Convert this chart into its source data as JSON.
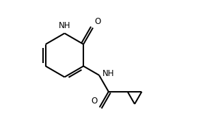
{
  "background": "#ffffff",
  "line_color": "#000000",
  "line_width": 1.5,
  "font_size": 8.5,
  "figsize": [
    3.0,
    2.0
  ],
  "dpi": 100,
  "xlim": [
    0,
    10
  ],
  "ylim": [
    0,
    7
  ]
}
